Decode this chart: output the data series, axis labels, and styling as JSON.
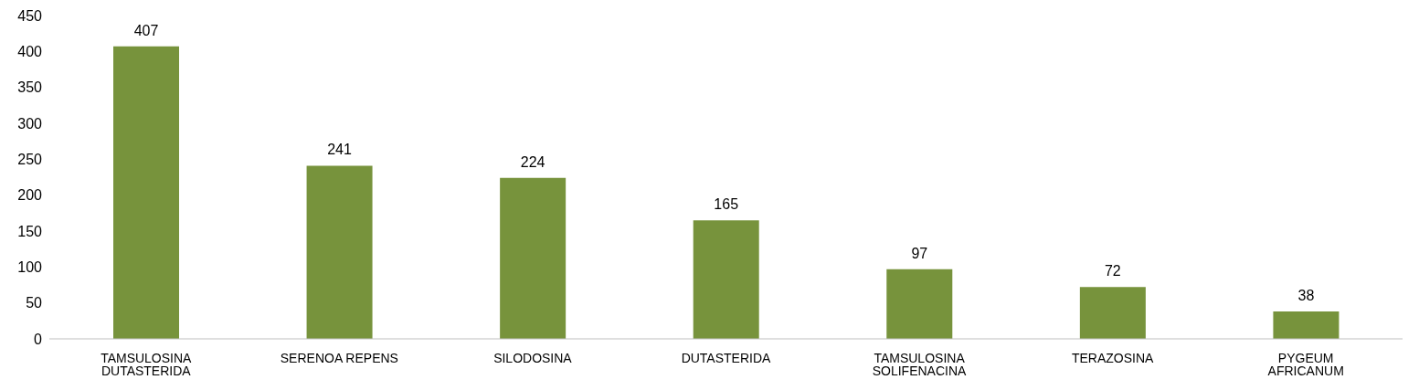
{
  "chart_data": {
    "type": "bar",
    "categories": [
      "TAMSULOSINA DUTASTERIDA",
      "SERENOA REPENS",
      "SILODOSINA",
      "DUTASTERIDA",
      "TAMSULOSINA SOLIFENACINA",
      "TERAZOSINA",
      "PYGEUM AFRICANUM"
    ],
    "values": [
      407,
      241,
      224,
      165,
      97,
      72,
      38
    ],
    "color": "#77933c",
    "ylim": [
      0,
      450
    ],
    "yticks": [
      0,
      50,
      100,
      150,
      200,
      250,
      300,
      350,
      400,
      450
    ],
    "grid": false,
    "data_labels": true,
    "legend": false
  }
}
